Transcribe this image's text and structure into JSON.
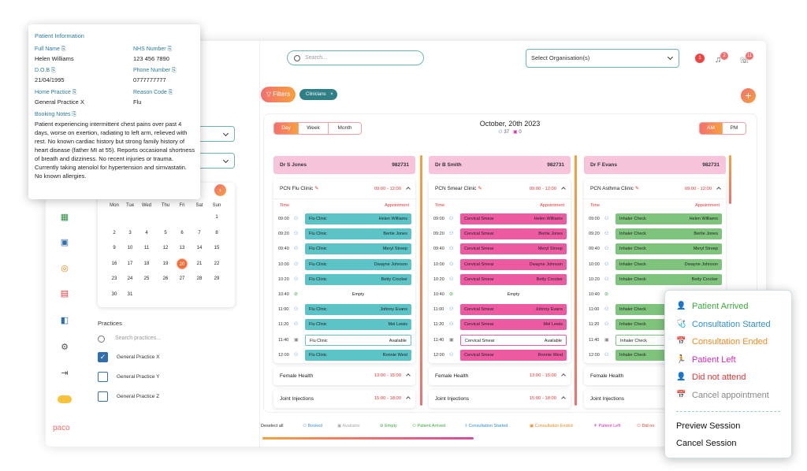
{
  "topbar": {
    "search_placeholder": "Search...",
    "org_select": "Select Organisation(s)",
    "badge1": "1",
    "badge2": "2",
    "badge3": "11"
  },
  "toolbar": {
    "filters": "Filters",
    "clinicians_chip": "Clinicians",
    "chip_close": "×",
    "add": "+"
  },
  "board": {
    "views": [
      "Day",
      "Week",
      "Month"
    ],
    "active_view": "Day",
    "date": "October, 20th 2023",
    "count_people": "37",
    "count_cal": "0",
    "ampm": [
      "AM",
      "PM"
    ],
    "active_ampm": "AM"
  },
  "columns": [
    {
      "doctor": "Dr S Jones",
      "code": "982731",
      "clinic": "PCN Flu Clinic",
      "clinic_time": "09:00 - 12:00",
      "time_label": "Time",
      "appt_label": "Appointment",
      "color": "#5cc3c6",
      "slots": [
        {
          "time": "09:00",
          "type": "Flu Clinic",
          "patient": "Helen Williams",
          "status": "booked"
        },
        {
          "time": "09:20",
          "type": "Flu Clinic",
          "patient": "Bertie Jones",
          "status": "booked"
        },
        {
          "time": "09:40",
          "type": "Flu Clinic",
          "patient": "Meryl Streep",
          "status": "booked"
        },
        {
          "time": "10:00",
          "type": "Flu Clinic",
          "patient": "Dwayne Johnson",
          "status": "booked"
        },
        {
          "time": "10:20",
          "type": "Flu Clinic",
          "patient": "Betty Crocker",
          "status": "booked"
        },
        {
          "time": "10:40",
          "type": "Empty",
          "patient": "",
          "status": "empty"
        },
        {
          "time": "11:00",
          "type": "Flu Clinic",
          "patient": "Johnny Evans",
          "status": "booked"
        },
        {
          "time": "11:20",
          "type": "Flu Clinic",
          "patient": "Mel Lewis",
          "status": "booked"
        },
        {
          "time": "11:40",
          "type": "Flu Clinic",
          "patient": "Available",
          "status": "available"
        },
        {
          "time": "12:00",
          "type": "Flu Clinic",
          "patient": "Ronnie West",
          "status": "booked"
        }
      ],
      "sections": [
        {
          "name": "Female Health",
          "time": "13:00 - 15:00"
        },
        {
          "name": "Joint Injections",
          "time": "15:00 - 18:00"
        }
      ]
    },
    {
      "doctor": "Dr B Smith",
      "code": "982731",
      "clinic": "PCN Smear Clinic",
      "clinic_time": "09:00 - 12:00",
      "time_label": "Time",
      "appt_label": "Appointment",
      "color": "#ec5aa1",
      "slots": [
        {
          "time": "09:00",
          "type": "Cervical Smear",
          "patient": "Helen Williams",
          "status": "booked"
        },
        {
          "time": "09:20",
          "type": "Cervical Smear",
          "patient": "Bertie Jones",
          "status": "booked"
        },
        {
          "time": "09:40",
          "type": "Cervical Smear",
          "patient": "Meryl Streep",
          "status": "booked"
        },
        {
          "time": "10:00",
          "type": "Cervical Smear",
          "patient": "Dwayne Johnson",
          "status": "booked"
        },
        {
          "time": "10:20",
          "type": "Cervical Smear",
          "patient": "Betty Crocker",
          "status": "booked"
        },
        {
          "time": "10:40",
          "type": "Empty",
          "patient": "",
          "status": "empty"
        },
        {
          "time": "11:00",
          "type": "Cervical Smear",
          "patient": "Johnny Evans",
          "status": "booked"
        },
        {
          "time": "11:20",
          "type": "Cervical Smear",
          "patient": "Mel Lewis",
          "status": "booked"
        },
        {
          "time": "11:40",
          "type": "Cervical Smear",
          "patient": "Available",
          "status": "available"
        },
        {
          "time": "12:00",
          "type": "Cervical Smear",
          "patient": "Ronnie West",
          "status": "booked"
        }
      ],
      "sections": [
        {
          "name": "Female Health",
          "time": "13:00 - 15:00"
        },
        {
          "name": "Joint Injections",
          "time": "15:00 - 18:00"
        }
      ]
    },
    {
      "doctor": "Dr F Evans",
      "code": "982731",
      "clinic": "PCN Asthma Clinic",
      "clinic_time": "09:00 - 12:00",
      "time_label": "Time",
      "appt_label": "Appointment",
      "color": "#7fc47d",
      "slots": [
        {
          "time": "09:00",
          "type": "Inhaler Check",
          "patient": "Helen Williams",
          "status": "booked"
        },
        {
          "time": "09:20",
          "type": "Inhaler Check",
          "patient": "Bertie Jones",
          "status": "booked"
        },
        {
          "time": "09:40",
          "type": "Inhaler Check",
          "patient": "Meryl Streep",
          "status": "booked"
        },
        {
          "time": "10:00",
          "type": "Inhaler Check",
          "patient": "Dwayne Johnson",
          "status": "booked"
        },
        {
          "time": "10:20",
          "type": "Inhaler Check",
          "patient": "Betty Crocker",
          "status": "booked"
        },
        {
          "time": "10:40",
          "type": "",
          "patient": "",
          "status": "empty"
        },
        {
          "time": "11:00",
          "type": "Inhaler Check",
          "patient": "",
          "status": "booked"
        },
        {
          "time": "11:20",
          "type": "Inhaler Check",
          "patient": "",
          "status": "booked"
        },
        {
          "time": "11:40",
          "type": "Inhaler Check",
          "patient": "",
          "status": "available"
        },
        {
          "time": "12:00",
          "type": "Inhaler Check",
          "patient": "",
          "status": "booked"
        }
      ],
      "sections": [
        {
          "name": "Female Health",
          "time": ""
        },
        {
          "name": "Joint Injections",
          "time": ""
        }
      ]
    }
  ],
  "legend": {
    "deselect": "Deselect all",
    "items": [
      "Booked",
      "Available",
      "Empty",
      "Patient Arrived",
      "Consultation Started",
      "Consultation Ended",
      "Patient Left",
      "Did no"
    ]
  },
  "popup": {
    "title": "Patient Information",
    "full_name_label": "Full Name",
    "full_name": "Helen Williams",
    "nhs_label": "NHS Number",
    "nhs": "123 456 7890",
    "dob_label": "D.O.B",
    "dob": "21/04/1995",
    "phone_label": "Phone Number",
    "phone": "0777777777",
    "practice_label": "Home Practice",
    "practice": "General Practice X",
    "reason_label": "Reason Code",
    "reason": "Flu",
    "notes_label": "Booking Notes",
    "notes": "Patient experiencing intermittent chest pains over past 4 days, worse on exertion, radiating to left arm, relieved with rest. No known cardiac history but strong family history of heart disease (father MI at 55). Reports occasional shortness of breath and dizziness. No recent injuries or trauma. Currently taking atenolol for hypertension and simvastatin. No known allergies."
  },
  "calendar": {
    "dow": [
      "Mon",
      "Tue",
      "Wed",
      "Thu",
      "Fri",
      "Sat",
      "Sun"
    ],
    "today": "20",
    "weeks": [
      [
        "",
        "",
        "",
        "",
        "",
        "",
        "1"
      ],
      [
        "2",
        "3",
        "4",
        "5",
        "6",
        "7",
        "8"
      ],
      [
        "9",
        "10",
        "11",
        "12",
        "13",
        "14",
        "15"
      ],
      [
        "16",
        "17",
        "18",
        "19",
        "20",
        "21",
        "22"
      ],
      [
        "23",
        "24",
        "25",
        "26",
        "27",
        "28",
        "29"
      ],
      [
        "30",
        "31",
        "",
        "",
        "",
        "",
        ""
      ]
    ]
  },
  "practices": {
    "title": "Practices",
    "search_placeholder": "Search practices...",
    "items": [
      {
        "name": "General Practice X",
        "checked": true
      },
      {
        "name": "General Practice Y",
        "checked": false
      },
      {
        "name": "General Practice Z",
        "checked": false
      }
    ]
  },
  "brand": {
    "logo": "paco"
  },
  "context_menu": {
    "items": [
      {
        "label": "Patient Arrived",
        "color": "#3aa93a",
        "icon": "👤"
      },
      {
        "label": "Consultation Started",
        "color": "#2d8fd1",
        "icon": "🩺"
      },
      {
        "label": "Consultation Ended",
        "color": "#f08a20",
        "icon": "📅"
      },
      {
        "label": "Patient Left",
        "color": "#d42fb0",
        "icon": "🏃"
      },
      {
        "label": "Did not attend",
        "color": "#e03a3a",
        "icon": "👤"
      },
      {
        "label": "Cancel appointment",
        "color": "#888888",
        "icon": "📅"
      }
    ],
    "actions": [
      "Preview Session",
      "Cancel Session"
    ]
  }
}
